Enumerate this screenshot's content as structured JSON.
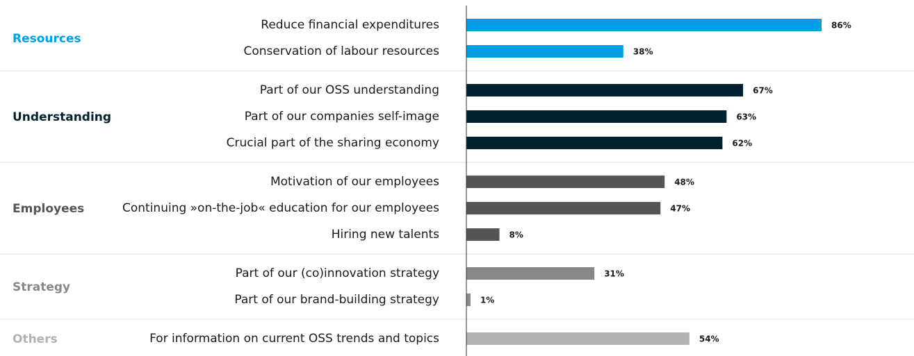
{
  "chart_data": {
    "type": "bar",
    "groups": [
      {
        "name": "Resources",
        "color": "#009fe3",
        "categories": [
          "Reduce financial expenditures",
          "Conservation of labour resources"
        ],
        "values": [
          86,
          38
        ],
        "value_labels": [
          "86%",
          "38%"
        ]
      },
      {
        "name": "Understanding",
        "color": "#00212e",
        "categories": [
          "Part of our OSS understanding",
          "Part of our companies self-image",
          "Crucial part of the sharing economy"
        ],
        "values": [
          67,
          63,
          62
        ],
        "value_labels": [
          "67%",
          "63%",
          "62%"
        ]
      },
      {
        "name": "Employees",
        "color": "#555555",
        "categories": [
          "Motivation of our employees",
          "Continuing »on-the-job« education for our  employees",
          "Hiring new talents"
        ],
        "values": [
          48,
          47,
          8
        ],
        "value_labels": [
          "48%",
          "47%",
          "8%"
        ]
      },
      {
        "name": "Strategy",
        "color": "#888888",
        "categories": [
          "Part of our (co)innovation strategy",
          "Part of our brand-building strategy"
        ],
        "values": [
          31,
          1
        ],
        "value_labels": [
          "31%",
          "1%"
        ]
      },
      {
        "name": "Others",
        "color": "#b2b2b2",
        "categories": [
          "For information on current OSS trends and topics"
        ],
        "values": [
          54
        ],
        "value_labels": [
          "54%"
        ]
      }
    ]
  }
}
